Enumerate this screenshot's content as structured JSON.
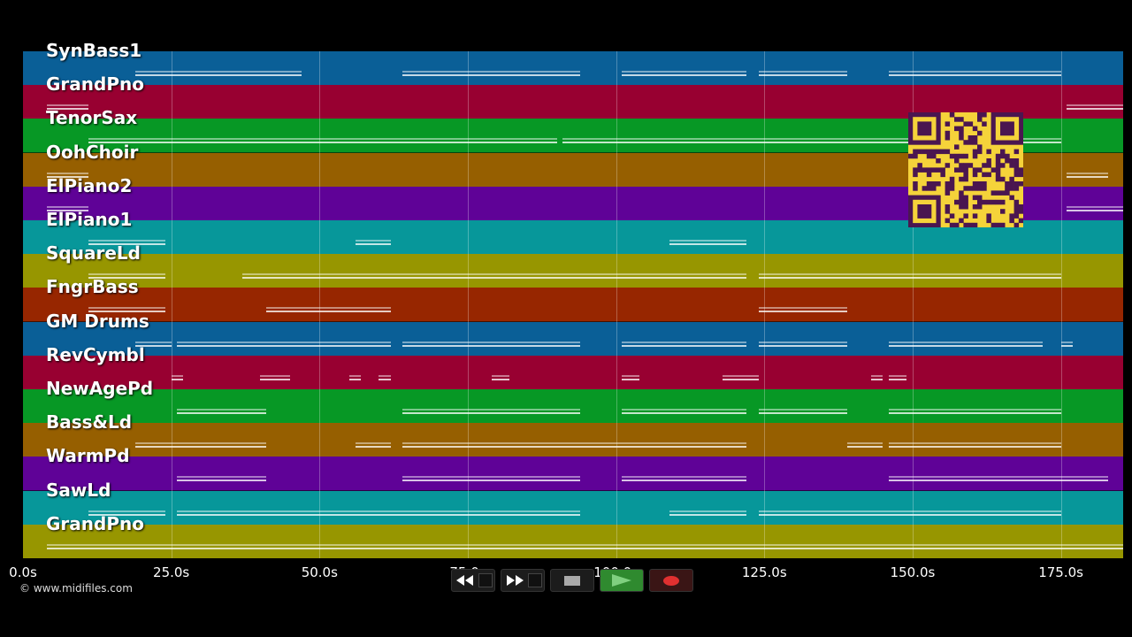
{
  "tracks": [
    {
      "name": "SynBass1",
      "color": "#0a5f97"
    },
    {
      "name": "GrandPno",
      "color": "#980031"
    },
    {
      "name": "TenorSax",
      "color": "#079825"
    },
    {
      "name": "OohChoir",
      "color": "#965f00"
    },
    {
      "name": "ElPiano2",
      "color": "#5f0297"
    },
    {
      "name": "ElPiano1",
      "color": "#07979a"
    },
    {
      "name": "SquareLd",
      "color": "#979600"
    },
    {
      "name": "FngrBass",
      "color": "#972600"
    },
    {
      "name": "GM Drums",
      "color": "#0a5f97"
    },
    {
      "name": "RevCymbl",
      "color": "#980031"
    },
    {
      "name": "NewAgePd",
      "color": "#079825"
    },
    {
      "name": "Bass&Ld",
      "color": "#965f00"
    },
    {
      "name": "WarmPd",
      "color": "#5f0297"
    },
    {
      "name": "SawLd",
      "color": "#07979a"
    },
    {
      "name": "GrandPno",
      "color": "#979600"
    }
  ],
  "timeline": {
    "ticks": [
      {
        "label": "0.0s",
        "value": 0
      },
      {
        "label": "25.0s",
        "value": 25
      },
      {
        "label": "50.0s",
        "value": 50
      },
      {
        "label": "75.0s",
        "value": 75
      },
      {
        "label": "100.0s",
        "value": 100
      },
      {
        "label": "125.0s",
        "value": 125
      },
      {
        "label": "150.0s",
        "value": 150
      },
      {
        "label": "175.0s",
        "value": 175
      }
    ],
    "max_seconds": 185.5
  },
  "notes": [
    {
      "track": 0,
      "segs": [
        [
          19,
          47
        ],
        [
          64,
          94
        ],
        [
          101,
          122
        ],
        [
          124,
          139
        ],
        [
          146,
          175
        ]
      ]
    },
    {
      "track": 1,
      "segs": [
        [
          4,
          11
        ],
        [
          176,
          185.5
        ]
      ]
    },
    {
      "track": 2,
      "segs": [
        [
          11,
          90
        ],
        [
          91,
          175
        ]
      ]
    },
    {
      "track": 3,
      "segs": [
        [
          4,
          11
        ],
        [
          176,
          183
        ]
      ]
    },
    {
      "track": 4,
      "segs": [
        [
          4,
          11
        ],
        [
          176,
          185.5
        ]
      ]
    },
    {
      "track": 5,
      "segs": [
        [
          11,
          24
        ],
        [
          56,
          62
        ],
        [
          109,
          122
        ]
      ]
    },
    {
      "track": 6,
      "segs": [
        [
          11,
          24
        ],
        [
          37,
          94
        ],
        [
          94,
          122
        ],
        [
          124,
          146
        ],
        [
          146,
          175
        ]
      ]
    },
    {
      "track": 7,
      "segs": [
        [
          11,
          24
        ],
        [
          41,
          62
        ],
        [
          124,
          139
        ]
      ]
    },
    {
      "track": 8,
      "segs": [
        [
          19,
          25
        ],
        [
          26,
          41
        ],
        [
          41,
          62
        ],
        [
          64,
          94
        ],
        [
          101,
          122
        ],
        [
          124,
          139
        ],
        [
          146,
          172
        ],
        [
          175,
          177
        ]
      ]
    },
    {
      "track": 9,
      "segs": [
        [
          25,
          27
        ],
        [
          40,
          45
        ],
        [
          55,
          57
        ],
        [
          60,
          62
        ],
        [
          79,
          82
        ],
        [
          101,
          104
        ],
        [
          118,
          124
        ],
        [
          143,
          145
        ],
        [
          146,
          149
        ]
      ]
    },
    {
      "track": 10,
      "segs": [
        [
          26,
          41
        ],
        [
          64,
          94
        ],
        [
          101,
          109
        ],
        [
          109,
          122
        ],
        [
          124,
          139
        ],
        [
          146,
          175
        ]
      ]
    },
    {
      "track": 11,
      "segs": [
        [
          19,
          41
        ],
        [
          56,
          62
        ],
        [
          64,
          94
        ],
        [
          94,
          122
        ],
        [
          139,
          145
        ],
        [
          146,
          175
        ]
      ]
    },
    {
      "track": 12,
      "segs": [
        [
          26,
          41
        ],
        [
          64,
          94
        ],
        [
          101,
          122
        ],
        [
          146,
          175
        ],
        [
          175,
          183
        ]
      ]
    },
    {
      "track": 13,
      "segs": [
        [
          11,
          24
        ],
        [
          26,
          41
        ],
        [
          41,
          94
        ],
        [
          109,
          122
        ],
        [
          124,
          146
        ],
        [
          146,
          175
        ]
      ]
    },
    {
      "track": 14,
      "segs": [
        [
          4,
          185.5
        ]
      ]
    }
  ],
  "credit": "© www.midifiles.com",
  "transport": {
    "rewind_icon": "rewind-icon",
    "fast_forward_icon": "fast-forward-icon",
    "stop_icon": "stop-icon",
    "play_icon": "play-icon",
    "record_icon": "record-icon"
  },
  "qr_icon": "qr-code-icon"
}
